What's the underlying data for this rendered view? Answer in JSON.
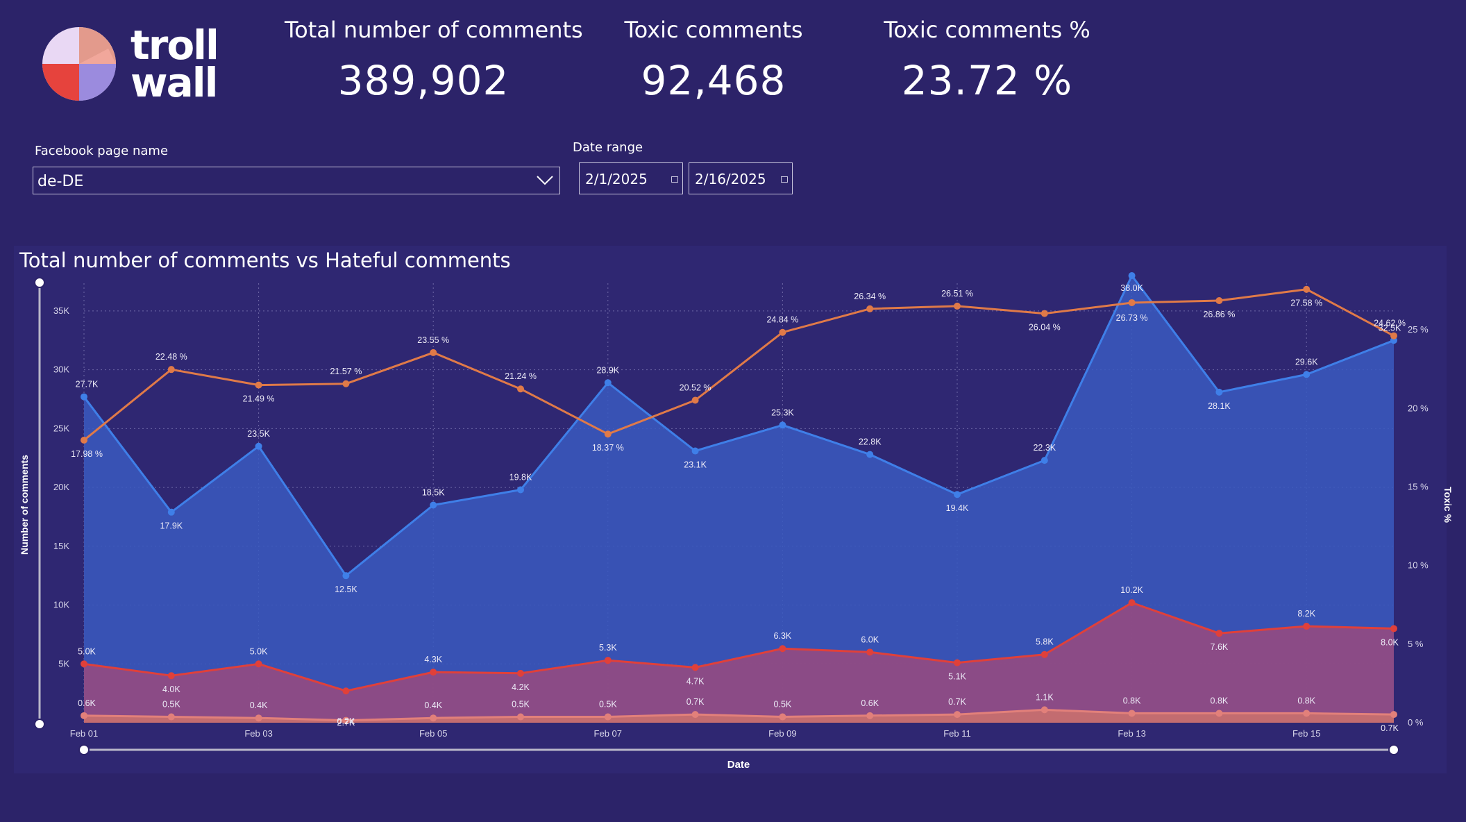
{
  "logo": {
    "text_line1": "troll",
    "text_line2": "wall"
  },
  "kpis": [
    {
      "title": "Total number of comments",
      "value": "389,902"
    },
    {
      "title": "Toxic comments",
      "value": "92,468"
    },
    {
      "title": "Toxic comments %",
      "value": "23.72 %"
    }
  ],
  "filters": {
    "page_label": "Facebook page name",
    "page_value": "de-DE",
    "date_label": "Date range",
    "date_start": "2/1/2025",
    "date_end": "2/16/2025"
  },
  "colors": {
    "background": "#2c2369",
    "total": "#3f7fe8",
    "toxic": "#e0403a",
    "toxic_pct": "#e07a48",
    "hateful": "#e2807a"
  },
  "chart_data": {
    "type": "line",
    "title": "Total number of comments vs Hateful comments",
    "xlabel": "Date",
    "ylabel": "Number of comments",
    "y2label": "Toxic %",
    "ylim": [
      0,
      37000
    ],
    "y2lim": [
      0,
      27.7
    ],
    "x": [
      "Feb 01",
      "Feb 02",
      "Feb 03",
      "Feb 04",
      "Feb 05",
      "Feb 06",
      "Feb 07",
      "Feb 08",
      "Feb 09",
      "Feb 10",
      "Feb 11",
      "Feb 12",
      "Feb 13",
      "Feb 14",
      "Feb 15",
      "Feb 16"
    ],
    "x_ticks": [
      "Feb 01",
      "Feb 03",
      "Feb 05",
      "Feb 07",
      "Feb 09",
      "Feb 11",
      "Feb 13",
      "Feb 15"
    ],
    "y_ticks": [
      "5K",
      "10K",
      "15K",
      "20K",
      "25K",
      "30K",
      "35K"
    ],
    "y2_ticks": [
      "0 %",
      "5 %",
      "10 %",
      "15 %",
      "20 %",
      "25 %"
    ],
    "grid": true,
    "series": [
      {
        "key": "total",
        "axis": "left",
        "area": true,
        "values": [
          27700,
          17900,
          23500,
          12500,
          18500,
          19800,
          28900,
          23100,
          25300,
          22800,
          19400,
          22300,
          38000,
          28100,
          29600,
          32500
        ],
        "labels": [
          "27.7K",
          "17.9K",
          "23.5K",
          "12.5K",
          "18.5K",
          "19.8K",
          "28.9K",
          "23.1K",
          "25.3K",
          "22.8K",
          "19.4K",
          "22.3K",
          "38.0K",
          "28.1K",
          "29.6K",
          "32.5K"
        ]
      },
      {
        "key": "toxic",
        "axis": "left",
        "area": true,
        "values": [
          5000,
          4000,
          5000,
          2700,
          4300,
          4200,
          5300,
          4700,
          6300,
          6000,
          5100,
          5800,
          10200,
          7600,
          8200,
          8000
        ],
        "labels": [
          "5.0K",
          "4.0K",
          "5.0K",
          "2.7K",
          "4.3K",
          "4.2K",
          "5.3K",
          "4.7K",
          "6.3K",
          "6.0K",
          "5.1K",
          "5.8K",
          "10.2K",
          "7.6K",
          "8.2K",
          "8.0K"
        ]
      },
      {
        "key": "hateful",
        "axis": "left",
        "area": true,
        "values": [
          600,
          500,
          400,
          200,
          400,
          500,
          500,
          700,
          500,
          600,
          700,
          1100,
          800,
          800,
          800,
          700
        ],
        "labels": [
          "0.6K",
          "0.5K",
          "0.4K",
          "0.2K",
          "0.4K",
          "0.5K",
          "0.5K",
          "0.7K",
          "0.5K",
          "0.6K",
          "0.7K",
          "1.1K",
          "0.8K",
          "0.8K",
          "0.8K",
          "0.7K"
        ]
      },
      {
        "key": "toxic_pct",
        "axis": "right",
        "area": false,
        "values": [
          17.98,
          22.48,
          21.49,
          21.57,
          23.55,
          21.24,
          18.37,
          20.52,
          24.84,
          26.34,
          26.51,
          26.04,
          26.73,
          26.86,
          27.58,
          24.62
        ],
        "labels": [
          "17.98 %",
          "22.48 %",
          "21.49 %",
          "21.57 %",
          "23.55 %",
          "21.24 %",
          "18.37 %",
          "20.52 %",
          "24.84 %",
          "26.34 %",
          "26.51 %",
          "26.04 %",
          "26.73 %",
          "26.86 %",
          "27.58 %",
          "24.62 %"
        ]
      }
    ]
  }
}
